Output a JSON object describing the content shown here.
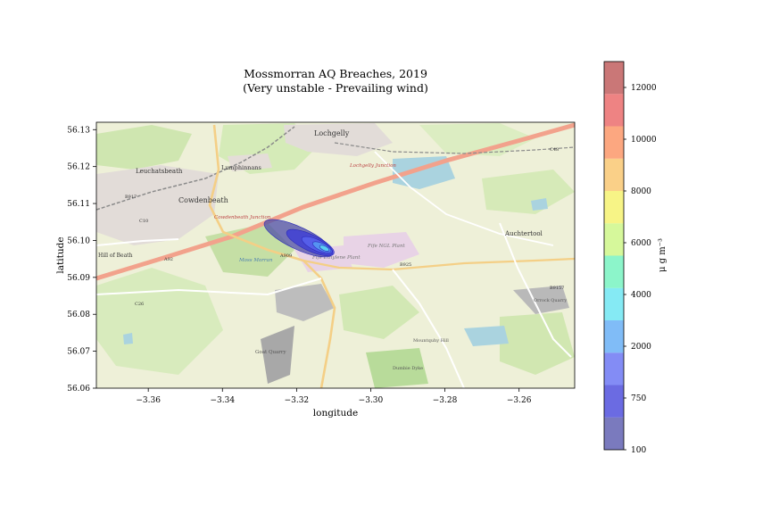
{
  "figure": {
    "title_line1": "Mossmorran AQ Breaches, 2019",
    "title_line2": "(Very unstable - Prevailing wind)"
  },
  "map_labels": [
    {
      "text": "Lochgelly",
      "kind": "town"
    },
    {
      "text": "Cowdenbeath",
      "kind": "town"
    },
    {
      "text": "Leuchatsbeath",
      "kind": "town"
    },
    {
      "text": "Lumphinnans",
      "kind": "town"
    },
    {
      "text": "Auchtertool",
      "kind": "town"
    },
    {
      "text": "Hill of Beath",
      "kind": "town"
    },
    {
      "text": "Fife NGL Plant",
      "kind": "site"
    },
    {
      "text": "Fife Ethylene Plant",
      "kind": "site"
    },
    {
      "text": "Lochgelly Junction",
      "kind": "rail"
    },
    {
      "text": "Cowdenbeath Junction",
      "kind": "rail"
    },
    {
      "text": "Moss Morran",
      "kind": "water"
    },
    {
      "text": "Goat Quarry",
      "kind": "site"
    },
    {
      "text": "Orrock Quarry",
      "kind": "site"
    },
    {
      "text": "Dumbie Dyke",
      "kind": "site"
    },
    {
      "text": "Mountquhy Hill",
      "kind": "site"
    },
    {
      "text": "A909",
      "kind": "road"
    },
    {
      "text": "A92",
      "kind": "road"
    },
    {
      "text": "B917",
      "kind": "road"
    },
    {
      "text": "C10",
      "kind": "road"
    },
    {
      "text": "B925",
      "kind": "road"
    },
    {
      "text": "C26",
      "kind": "road"
    },
    {
      "text": "B9157",
      "kind": "road"
    },
    {
      "text": "C48",
      "kind": "road"
    }
  ],
  "chart_data": {
    "type": "contour",
    "xlabel": "longitude",
    "ylabel": "latitude",
    "xlim": [
      -3.374,
      -3.245
    ],
    "ylim": [
      56.06,
      56.132
    ],
    "xticks": [
      -3.36,
      -3.34,
      -3.32,
      -3.3,
      -3.28,
      -3.26
    ],
    "xtick_labels": [
      "−3.36",
      "−3.34",
      "−3.32",
      "−3.30",
      "−3.28",
      "−3.26"
    ],
    "yticks": [
      56.06,
      56.07,
      56.08,
      56.09,
      56.1,
      56.11,
      56.12,
      56.13
    ],
    "ytick_labels": [
      "56.06",
      "56.07",
      "56.08",
      "56.09",
      "56.10",
      "56.11",
      "56.12",
      "56.13"
    ],
    "background": "OpenStreetMap tiles",
    "plume": {
      "source_lon": -3.3115,
      "source_lat": 56.0975,
      "orientation_deg": -25,
      "contours": [
        {
          "level": 100,
          "center": [
            -3.3195,
            56.1006
          ],
          "semi_major_lon": 0.0101,
          "semi_minor_lat": 0.003
        },
        {
          "level": 750,
          "center": [
            -3.3163,
            56.0994
          ],
          "semi_major_lon": 0.007,
          "semi_minor_lat": 0.0022
        },
        {
          "level": 2000,
          "center": [
            -3.3145,
            56.0987
          ],
          "semi_major_lon": 0.0045,
          "semi_minor_lat": 0.0015
        },
        {
          "level": 4000,
          "center": [
            -3.3132,
            56.0982
          ],
          "semi_major_lon": 0.0027,
          "semi_minor_lat": 0.001
        },
        {
          "level": 6000,
          "center": [
            -3.3125,
            56.0979
          ],
          "semi_major_lon": 0.0014,
          "semi_minor_lat": 0.0006
        }
      ]
    },
    "colorbar": {
      "label": "μ g m⁻³",
      "levels": [
        100,
        750,
        2000,
        4000,
        6000,
        8000,
        10000,
        12000,
        13000
      ],
      "tick_labels": [
        "100",
        "750",
        "2000",
        "4000",
        "6000",
        "8000",
        "10000",
        "12000"
      ],
      "colors": [
        "#4e4ea8",
        "#3a3ad8",
        "#5a66f2",
        "#56a6f4",
        "#5ce3f0",
        "#66f2b8",
        "#c8f57a",
        "#f4f05e",
        "#f8c060",
        "#fb8a55",
        "#e85a5a",
        "#b8494a"
      ]
    }
  }
}
